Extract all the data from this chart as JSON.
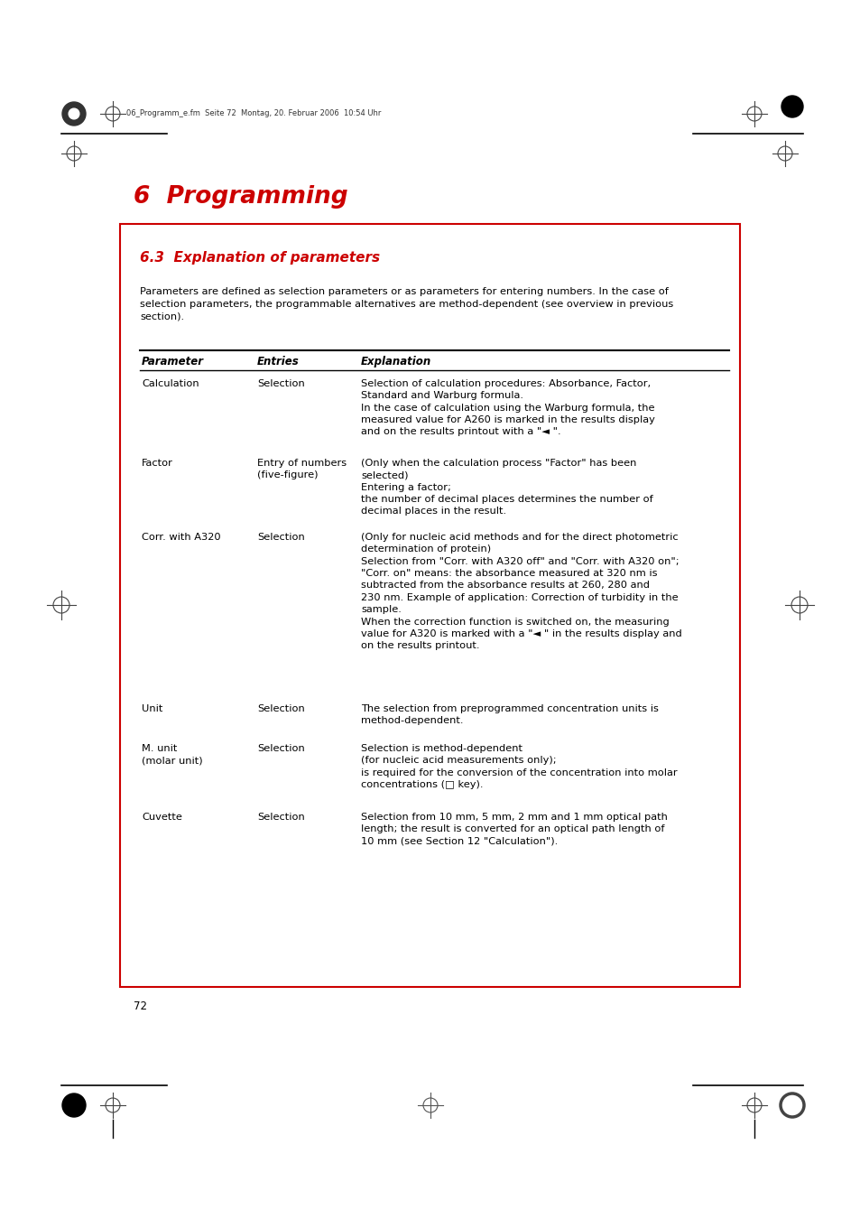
{
  "page_bg": "#ffffff",
  "red_box_color": "#cc0000",
  "title_main": "6  Programming",
  "title_section": "6.3  Explanation of parameters",
  "intro_text": "Parameters are defined as selection parameters or as parameters for entering numbers. In the case of\nselection parameters, the programmable alternatives are method-dependent (see overview in previous\nsection).",
  "header_row": [
    "Parameter",
    "Entries",
    "Explanation"
  ],
  "table_rows": [
    {
      "param": "Calculation",
      "entries": "Selection",
      "explanation": "Selection of calculation procedures: Absorbance, Factor,\nStandard and Warburg formula.\nIn the case of calculation using the Warburg formula, the\nmeasured value for A260 is marked in the results display\nand on the results printout with a \"◄ \"."
    },
    {
      "param": "Factor",
      "entries": "Entry of numbers\n(five-figure)",
      "explanation": "(Only when the calculation process \"Factor\" has been\nselected)\nEntering a factor;\nthe number of decimal places determines the number of\ndecimal places in the result."
    },
    {
      "param": "Corr. with A320",
      "entries": "Selection",
      "explanation": "(Only for nucleic acid methods and for the direct photometric\ndetermination of protein)\nSelection from \"Corr. with A320 off\" and \"Corr. with A320 on\";\n\"Corr. on\" means: the absorbance measured at 320 nm is\nsubtracted from the absorbance results at 260, 280 and\n230 nm. Example of application: Correction of turbidity in the\nsample.\nWhen the correction function is switched on, the measuring\nvalue for A320 is marked with a \"◄ \" in the results display and\non the results printout."
    },
    {
      "param": "Unit",
      "entries": "Selection",
      "explanation": "The selection from preprogrammed concentration units is\nmethod-dependent."
    },
    {
      "param": "M. unit\n(molar unit)",
      "entries": "Selection",
      "explanation": "Selection is method-dependent\n(for nucleic acid measurements only);\nis required for the conversion of the concentration into molar\nconcentrations (□ key)."
    },
    {
      "param": "Cuvette",
      "entries": "Selection",
      "explanation": "Selection from 10 mm, 5 mm, 2 mm and 1 mm optical path\nlength; the result is converted for an optical path length of\n10 mm (see Section 12 \"Calculation\")."
    }
  ],
  "page_number": "72",
  "header_text": "06_Programm_e.fm  Seite 72  Montag, 20. Februar 2006  10:54 Uhr"
}
